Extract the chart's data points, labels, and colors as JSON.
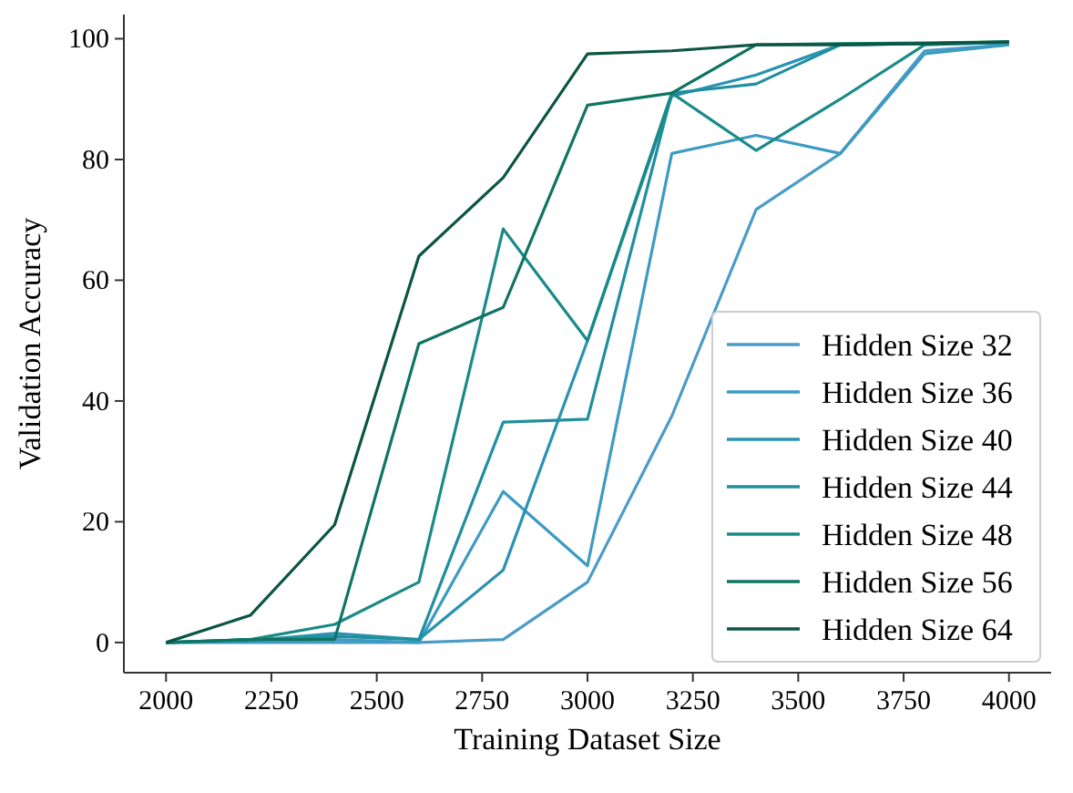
{
  "chart_data": {
    "type": "line",
    "xlabel": "Training Dataset Size",
    "ylabel": "Validation Accuracy",
    "x": [
      2000,
      2200,
      2400,
      2600,
      2800,
      3000,
      3200,
      3400,
      3600,
      3800,
      4000
    ],
    "xlim": [
      1900,
      4100
    ],
    "xticks": [
      2000,
      2250,
      2500,
      2750,
      3000,
      3250,
      3500,
      3750,
      4000
    ],
    "ylim": [
      -5,
      104
    ],
    "yticks": [
      0,
      20,
      40,
      60,
      80,
      100
    ],
    "grid": false,
    "legend": "bottom right",
    "marker": "none",
    "line_style": "solid",
    "series": [
      {
        "name": "Hidden Size 32",
        "color": "#4a9cc7",
        "values": [
          0,
          0,
          0,
          0,
          0.5,
          10,
          37.5,
          71.7,
          81,
          98,
          99
        ]
      },
      {
        "name": "Hidden Size 36",
        "color": "#3d9bc2",
        "values": [
          0,
          0.2,
          0.5,
          0,
          25,
          12.7,
          81,
          84,
          81,
          97.5,
          99
        ]
      },
      {
        "name": "Hidden Size 40",
        "color": "#2a92b2",
        "values": [
          0,
          0.3,
          1.5,
          0.5,
          12,
          50,
          90.5,
          94,
          99,
          99.2,
          99.3
        ]
      },
      {
        "name": "Hidden Size 44",
        "color": "#1f8f9e",
        "values": [
          0,
          0.5,
          1,
          0.5,
          36.5,
          37,
          91,
          92.5,
          99,
          99.2,
          99.4
        ]
      },
      {
        "name": "Hidden Size 48",
        "color": "#1a8a88",
        "values": [
          0,
          0.5,
          3,
          10,
          68.5,
          50,
          91,
          81.5,
          90,
          99,
          99.4
        ]
      },
      {
        "name": "Hidden Size 56",
        "color": "#0f7462",
        "values": [
          0,
          0.5,
          0.5,
          49.5,
          55.5,
          89,
          91,
          99,
          99.2,
          99.3,
          99.5
        ]
      },
      {
        "name": "Hidden Size 64",
        "color": "#0b5543",
        "values": [
          0,
          4.5,
          19.5,
          64,
          77,
          97.5,
          98,
          99,
          99,
          99.2,
          99.5
        ]
      }
    ]
  }
}
